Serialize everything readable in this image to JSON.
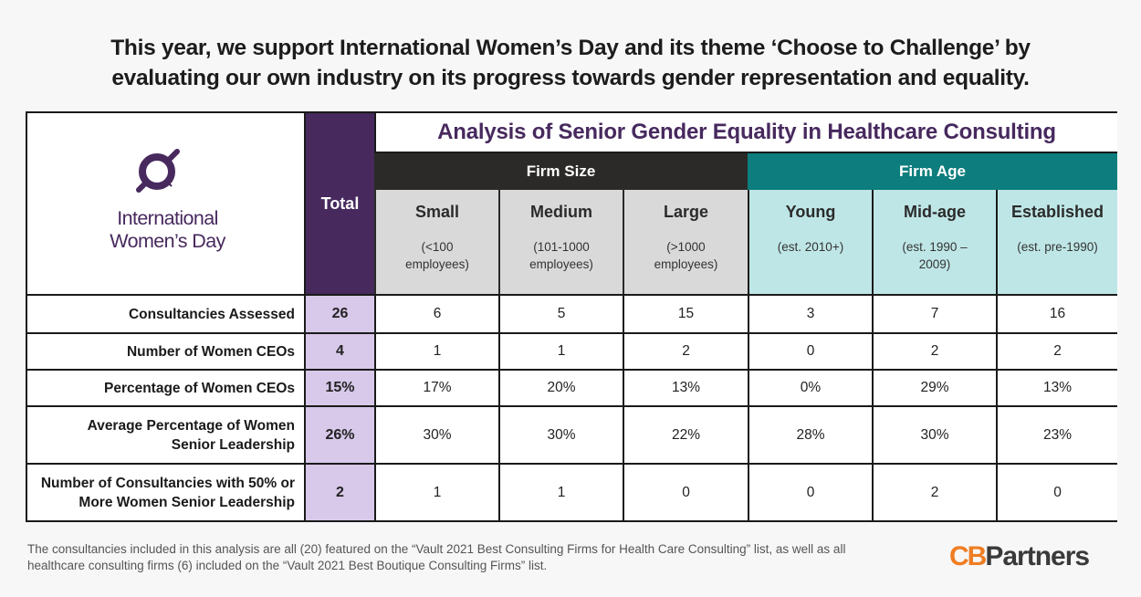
{
  "headline": "This year, we support International Women’s Day and its theme ‘Choose to Challenge’ by evaluating our own industry on its progress towards gender representation and equality.",
  "logo": {
    "line1": "International",
    "line2": "Women’s Day",
    "icon": "venus-symbol-icon"
  },
  "table": {
    "title": "Analysis of Senior Gender Equality in Healthcare Consulting",
    "total_label": "Total",
    "groups": {
      "size": "Firm Size",
      "age": "Firm Age"
    },
    "columns": [
      {
        "name": "Small",
        "note": "(<100 employees)"
      },
      {
        "name": "Medium",
        "note": "(101-1000 employees)"
      },
      {
        "name": "Large",
        "note": "(>1000 employees)"
      },
      {
        "name": "Young",
        "note": "(est. 2010+)"
      },
      {
        "name": "Mid-age",
        "note": "(est. 1990 – 2009)"
      },
      {
        "name": "Established",
        "note": "(est. pre-1990)"
      }
    ],
    "rows": [
      {
        "label": "Consultancies Assessed",
        "total": "26",
        "values": [
          "6",
          "5",
          "15",
          "3",
          "7",
          "16"
        ]
      },
      {
        "label": "Number of Women CEOs",
        "total": "4",
        "values": [
          "1",
          "1",
          "2",
          "0",
          "2",
          "2"
        ]
      },
      {
        "label": "Percentage of Women CEOs",
        "total": "15%",
        "values": [
          "17%",
          "20%",
          "13%",
          "0%",
          "29%",
          "13%"
        ]
      },
      {
        "label": "Average Percentage of Women Senior Leadership",
        "total": "26%",
        "values": [
          "30%",
          "30%",
          "22%",
          "28%",
          "30%",
          "23%"
        ]
      },
      {
        "label": "Number of Consultancies with 50% or More Women Senior Leadership",
        "total": "2",
        "values": [
          "1",
          "1",
          "0",
          "0",
          "2",
          "0"
        ]
      }
    ]
  },
  "footnote": "The consultancies included in this analysis are all (20) featured on the “Vault 2021 Best Consulting Firms for Health Care Consulting” list, as well as all healthcare consulting firms (6) included on the “Vault 2021 Best Boutique Consulting Firms” list.",
  "brand": {
    "mark": "CB",
    "word": "Partners"
  },
  "colors": {
    "purple": "#47295e",
    "lavender": "#d8c8ea",
    "teal": "#0d7d7d",
    "light_teal": "#bfe6e6",
    "dark": "#2b2a28",
    "orange": "#ef7d22"
  }
}
